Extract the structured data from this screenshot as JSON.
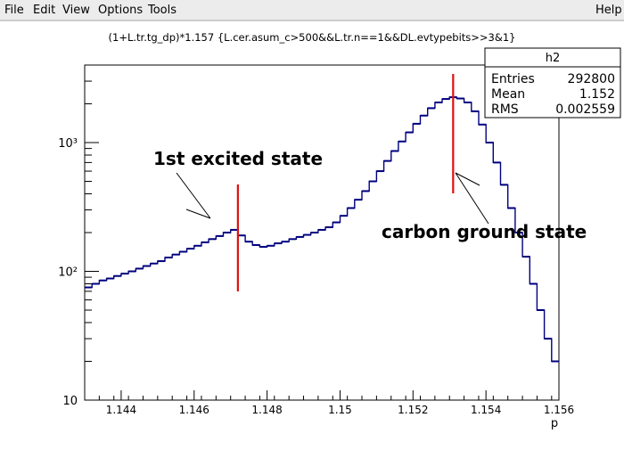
{
  "menubar": {
    "file": "File",
    "edit": "Edit",
    "view": "View",
    "options": "Options",
    "tools": "Tools",
    "help": "Help"
  },
  "colors": {
    "histogram": "#00007f",
    "markers": "#e01010",
    "frame": "#000000"
  },
  "stats_box": {
    "name": "h2",
    "rows": [
      {
        "label": "Entries",
        "value": "292800"
      },
      {
        "label": "Mean",
        "value": "1.152"
      },
      {
        "label": "RMS",
        "value": "0.002559"
      }
    ]
  },
  "annotations": {
    "excited": "1st excited state",
    "ground": "carbon ground state"
  },
  "chart_data": {
    "type": "histogram",
    "title": "(1+L.tr.tg_dp)*1.157 {L.cer.asum_c>500&&L.tr.n==1&&DL.evtypebits>>3&1}",
    "xlabel": "p",
    "ylabel": "",
    "xlim": [
      1.143,
      1.156
    ],
    "ylim": [
      10,
      4000
    ],
    "yscale": "log",
    "x_ticks": [
      "1.144",
      "1.146",
      "1.148",
      "1.15",
      "1.152",
      "1.154",
      "1.156"
    ],
    "y_ticks": [
      "10",
      "10²",
      "10³"
    ],
    "markers_x": [
      1.1472,
      1.1531
    ],
    "x": [
      1.1431,
      1.1433,
      1.1435,
      1.1437,
      1.1439,
      1.1441,
      1.1443,
      1.1445,
      1.1447,
      1.1449,
      1.1451,
      1.1453,
      1.1455,
      1.1457,
      1.1459,
      1.1461,
      1.1463,
      1.1465,
      1.1467,
      1.1469,
      1.1471,
      1.1473,
      1.1475,
      1.1477,
      1.1479,
      1.1481,
      1.1483,
      1.1485,
      1.1487,
      1.1489,
      1.1491,
      1.1493,
      1.1495,
      1.1497,
      1.1499,
      1.1501,
      1.1503,
      1.1505,
      1.1507,
      1.1509,
      1.1511,
      1.1513,
      1.1515,
      1.1517,
      1.1519,
      1.1521,
      1.1523,
      1.1525,
      1.1527,
      1.1529,
      1.1531,
      1.1533,
      1.1535,
      1.1537,
      1.1539,
      1.1541,
      1.1543,
      1.1545,
      1.1547,
      1.1549,
      1.1551,
      1.1553,
      1.1555,
      1.1557,
      1.1559
    ],
    "values": [
      75,
      80,
      85,
      88,
      92,
      96,
      100,
      105,
      110,
      115,
      120,
      128,
      135,
      142,
      150,
      158,
      168,
      178,
      188,
      200,
      210,
      190,
      170,
      160,
      155,
      158,
      165,
      170,
      178,
      185,
      192,
      200,
      210,
      220,
      240,
      270,
      310,
      360,
      420,
      500,
      600,
      720,
      860,
      1020,
      1200,
      1400,
      1620,
      1850,
      2050,
      2180,
      2250,
      2200,
      2050,
      1750,
      1380,
      1000,
      700,
      470,
      310,
      200,
      130,
      80,
      50,
      30,
      20
    ]
  }
}
